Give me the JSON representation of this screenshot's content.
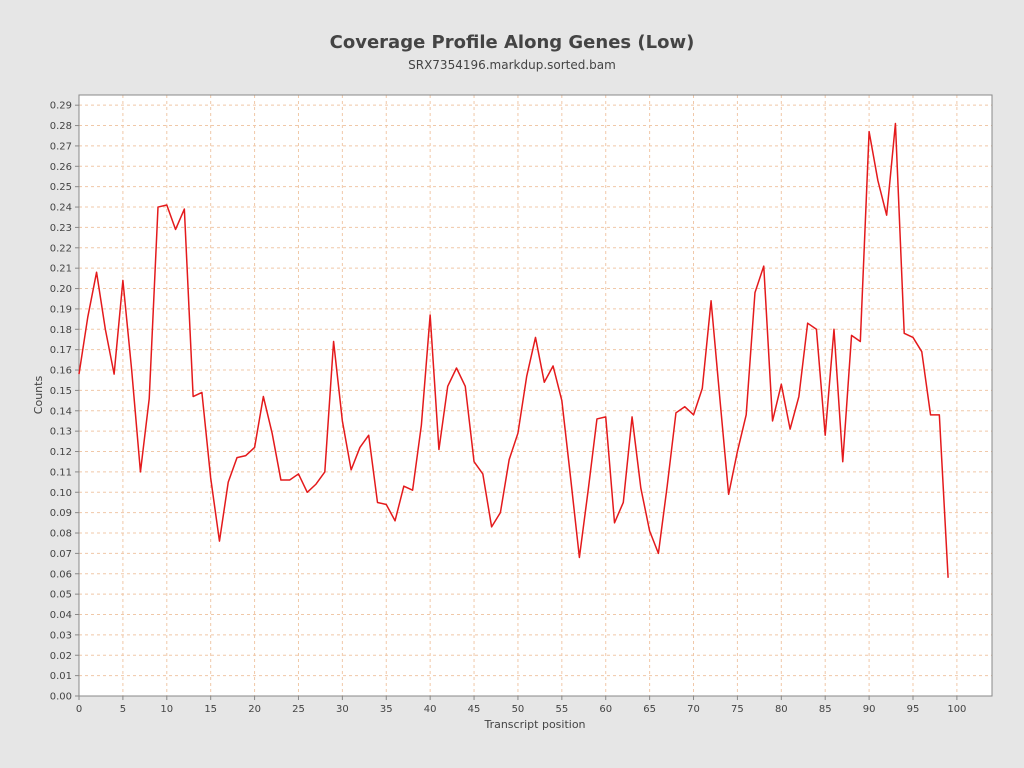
{
  "chart_data": {
    "type": "line",
    "title": "Coverage Profile Along Genes (Low)",
    "subtitle": "SRX7354196.markdup.sorted.bam",
    "xlabel": "Transcript position",
    "ylabel": "Counts",
    "xlim": [
      0,
      104
    ],
    "ylim": [
      0,
      0.295
    ],
    "x_ticks": [
      0,
      5,
      10,
      15,
      20,
      25,
      30,
      35,
      40,
      45,
      50,
      55,
      60,
      65,
      70,
      75,
      80,
      85,
      90,
      95,
      100
    ],
    "x_tick_labels": [
      "0",
      "5",
      "10",
      "15",
      "20",
      "25",
      "30",
      "35",
      "40",
      "45",
      "50",
      "55",
      "60",
      "65",
      "70",
      "75",
      "80",
      "85",
      "90",
      "95",
      "100"
    ],
    "y_ticks": [
      0,
      0.01,
      0.02,
      0.03,
      0.04,
      0.05,
      0.06,
      0.07,
      0.08,
      0.09,
      0.1,
      0.11,
      0.12,
      0.13,
      0.14,
      0.15,
      0.16,
      0.17,
      0.18,
      0.19,
      0.2,
      0.21,
      0.22,
      0.23,
      0.24,
      0.25,
      0.26,
      0.27,
      0.28,
      0.29
    ],
    "y_tick_labels": [
      "0.00",
      "0.01",
      "0.02",
      "0.03",
      "0.04",
      "0.05",
      "0.06",
      "0.07",
      "0.08",
      "0.09",
      "0.10",
      "0.11",
      "0.12",
      "0.13",
      "0.14",
      "0.15",
      "0.16",
      "0.17",
      "0.18",
      "0.19",
      "0.20",
      "0.21",
      "0.22",
      "0.23",
      "0.24",
      "0.25",
      "0.26",
      "0.27",
      "0.28",
      "0.29"
    ],
    "grid": true,
    "legend": "none",
    "colors": {
      "line": "#e41a1c",
      "grid": "#f0c8a8",
      "plot_background": "#ffffff",
      "page_background": "#e6e6e6",
      "axis": "#888888",
      "text": "#444444"
    },
    "series": [
      {
        "x": [
          0,
          1,
          2,
          3,
          4,
          5,
          6,
          7,
          8,
          9,
          10,
          11,
          12,
          13,
          14,
          15,
          16,
          17,
          18,
          19,
          20,
          21,
          22,
          23,
          24,
          25,
          26,
          27,
          28,
          29,
          30,
          31,
          32,
          33,
          34,
          35,
          36,
          37,
          38,
          39,
          40,
          41,
          42,
          43,
          44,
          45,
          46,
          47,
          48,
          49,
          50,
          51,
          52,
          53,
          54,
          55,
          56,
          57,
          58,
          59,
          60,
          61,
          62,
          63,
          64,
          65,
          66,
          67,
          68,
          69,
          70,
          71,
          72,
          73,
          74,
          75,
          76,
          77,
          78,
          79,
          80,
          81,
          82,
          83,
          84,
          85,
          86,
          87,
          88,
          89,
          90,
          91,
          92,
          93,
          94,
          95,
          96,
          97,
          98,
          99
        ],
        "values": [
          0.158,
          0.186,
          0.208,
          0.18,
          0.158,
          0.204,
          0.16,
          0.11,
          0.146,
          0.24,
          0.241,
          0.229,
          0.239,
          0.147,
          0.149,
          0.107,
          0.076,
          0.105,
          0.117,
          0.118,
          0.122,
          0.147,
          0.129,
          0.106,
          0.106,
          0.109,
          0.1,
          0.104,
          0.11,
          0.174,
          0.135,
          0.111,
          0.122,
          0.128,
          0.095,
          0.094,
          0.086,
          0.103,
          0.101,
          0.133,
          0.187,
          0.121,
          0.152,
          0.161,
          0.152,
          0.115,
          0.109,
          0.083,
          0.09,
          0.116,
          0.129,
          0.157,
          0.176,
          0.154,
          0.162,
          0.145,
          0.107,
          0.068,
          0.101,
          0.136,
          0.137,
          0.085,
          0.095,
          0.137,
          0.102,
          0.081,
          0.07,
          0.103,
          0.139,
          0.142,
          0.138,
          0.151,
          0.194,
          0.146,
          0.099,
          0.12,
          0.138,
          0.198,
          0.211,
          0.135,
          0.153,
          0.131,
          0.147,
          0.183,
          0.18,
          0.128,
          0.18,
          0.115,
          0.177,
          0.174,
          0.277,
          0.253,
          0.236,
          0.281,
          0.178,
          0.176,
          0.169,
          0.138,
          0.138,
          0.058
        ]
      }
    ]
  }
}
